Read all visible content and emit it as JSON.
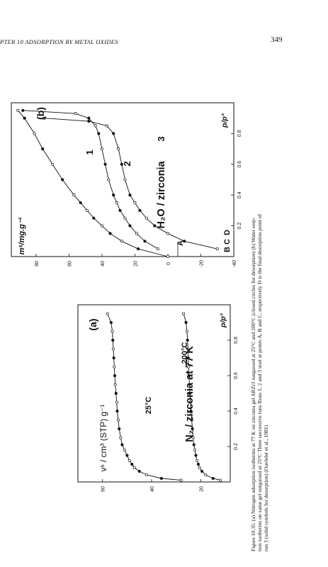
{
  "header": {
    "running_title": "PTER 10 ADSORPTION BY METAL OXIDES",
    "page_number": "349"
  },
  "panel_a": {
    "tag": "(a)",
    "title": "N₂ / zirconia at 77 K",
    "y_label": "vˢ / cm³ (STP) g⁻¹",
    "x_label": "p/p°",
    "curve_labels": [
      "25°C",
      "200°C"
    ]
  },
  "panel_b": {
    "tag": "(b)",
    "title": "H₂O / zirconia",
    "y_label": "mˢ/mg.g⁻¹",
    "x_label": "p/p°",
    "run_labels": [
      "1",
      "2",
      "3"
    ],
    "point_labels": [
      "A",
      "B",
      "C",
      "D"
    ]
  },
  "caption": {
    "lines": [
      "Figure 10.35.   (a) Nitrogen adsorption isotherms at 77 K on zirconia gel ARZr3 outgassed at 25°C and 200°C (closed circles for desorption)  (b) Water sorp-",
      "tion isotherms on same gel outgassed at 25°C  Three successive runs  Runs 1, 2 and 3 start at points A, B and C, respectively  D is the final desorption point of",
      "run 3 (solid symbols for desorption) (Ouvlelet et al., 1981)"
    ]
  },
  "chart_data": [
    {
      "type": "line",
      "title": "N₂ / zirconia at 77 K",
      "xlabel": "p/p°",
      "ylabel": "vˢ / cm³ (STP) g⁻¹",
      "xlim": [
        0,
        1
      ],
      "ylim": [
        8,
        70
      ],
      "xticks": [
        "0.2",
        "0.4",
        "0.6",
        "0.8"
      ],
      "yticks": [
        "20",
        "40",
        "60"
      ],
      "series": [
        {
          "name": "25°C",
          "x": [
            0.01,
            0.02,
            0.04,
            0.06,
            0.08,
            0.1,
            0.12,
            0.15,
            0.18,
            0.21,
            0.25,
            0.3,
            0.35,
            0.4,
            0.45,
            0.5,
            0.55,
            0.6,
            0.65,
            0.7,
            0.75,
            0.8,
            0.85,
            0.9,
            0.95
          ],
          "y": [
            28,
            36,
            42,
            45,
            47,
            48,
            49,
            50,
            51,
            52,
            52.6,
            53.2,
            53.6,
            54,
            54.2,
            54.5,
            54.8,
            55,
            55.2,
            55.4,
            55.6,
            55.8,
            56,
            56.5,
            58
          ]
        },
        {
          "name": "200°C",
          "x": [
            0.01,
            0.02,
            0.04,
            0.06,
            0.08,
            0.1,
            0.12,
            0.15,
            0.18,
            0.21,
            0.25,
            0.3,
            0.35,
            0.4,
            0.45,
            0.5,
            0.55,
            0.6,
            0.65,
            0.7,
            0.75,
            0.8,
            0.85,
            0.9,
            0.95
          ],
          "y": [
            12,
            15,
            18,
            19.5,
            20.5,
            21,
            21.5,
            22,
            22.4,
            22.8,
            23.1,
            23.4,
            23.7,
            24,
            24.2,
            24.4,
            24.6,
            24.8,
            25,
            25.1,
            25.2,
            25.4,
            25.6,
            26,
            27
          ]
        }
      ]
    },
    {
      "type": "line",
      "title": "H₂O / zirconia",
      "xlabel": "p/p°",
      "ylabel": "mˢ/mg.g⁻¹",
      "xlim": [
        0,
        1
      ],
      "ylim": [
        -40,
        95
      ],
      "xticks": [
        "0.2",
        "0.4",
        "0.6",
        "0.8"
      ],
      "yticks": [
        "-40",
        "-20",
        "0",
        "20",
        "40",
        "60",
        "80"
      ],
      "series": [
        {
          "name": "1",
          "x": [
            0.0,
            0.05,
            0.1,
            0.15,
            0.2,
            0.25,
            0.3,
            0.35,
            0.4,
            0.5,
            0.6,
            0.7,
            0.8,
            0.9,
            0.95
          ],
          "y": [
            0,
            18,
            28,
            35,
            40,
            45,
            49,
            53,
            57,
            64,
            70,
            76,
            81,
            87,
            91
          ]
        },
        {
          "name": "2",
          "x": [
            0.05,
            0.1,
            0.15,
            0.2,
            0.25,
            0.3,
            0.35,
            0.4,
            0.5,
            0.6,
            0.7,
            0.8,
            0.85,
            0.9,
            0.93,
            0.95
          ],
          "y": [
            6,
            14,
            19,
            23,
            26,
            29,
            31,
            33,
            36,
            38,
            40,
            42,
            44,
            48,
            56,
            88
          ]
        },
        {
          "name": "3",
          "x": [
            0.05,
            0.1,
            0.15,
            0.2,
            0.25,
            0.3,
            0.35,
            0.4,
            0.5,
            0.6,
            0.7,
            0.8,
            0.85,
            0.88,
            0.9
          ],
          "y": [
            -30,
            -10,
            0,
            8,
            13,
            17,
            20,
            23,
            26,
            28,
            30,
            33,
            37,
            48,
            75
          ]
        }
      ]
    }
  ]
}
